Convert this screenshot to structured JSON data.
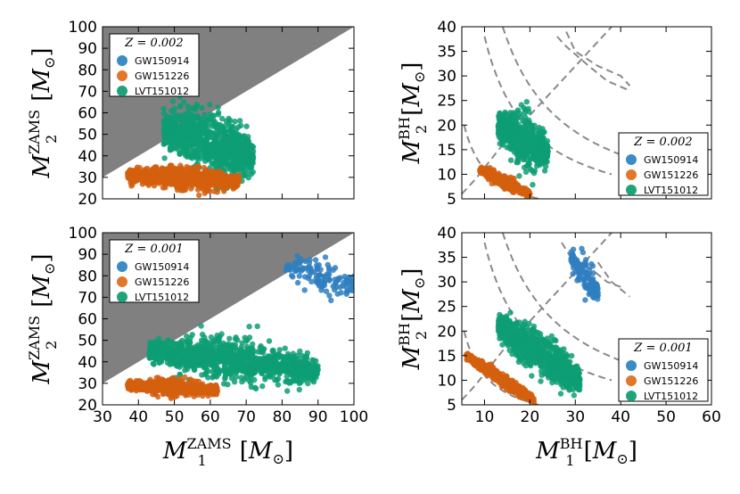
{
  "chart_data": [
    {
      "type": "scatter",
      "panel": "top-left",
      "xlim": [
        30,
        100
      ],
      "ylim": [
        20,
        100
      ],
      "xticks": [],
      "yticks": [
        "20",
        "30",
        "40",
        "50",
        "60",
        "70",
        "80",
        "90",
        "100"
      ],
      "ylabel": {
        "main": "M",
        "sub": "2",
        "sup": "ZAMS",
        "unit": "[M",
        "unit_sub": "⊙",
        "close": "]"
      },
      "forbidden_region": {
        "color": "#808080",
        "vertices": [
          [
            30,
            30
          ],
          [
            100,
            100
          ],
          [
            30,
            100
          ]
        ]
      },
      "legend": {
        "title": "Z = 0.002",
        "position": "top-left",
        "entries": [
          {
            "label": "GW150914",
            "color": "#3a8cc4"
          },
          {
            "label": "GW151226",
            "color": "#e2772a"
          },
          {
            "label": "LVT151012",
            "color": "#1fa37b"
          }
        ]
      },
      "series": [
        {
          "name": "LVT151012",
          "color": "#0e9e74",
          "cloud": {
            "x_range": [
              47,
              72
            ],
            "y_center": [
              52,
              40
            ],
            "y_spread": 6,
            "n": 900
          }
        },
        {
          "name": "GW151226",
          "color": "#d45f0e",
          "cloud": {
            "x_range": [
              37,
              68
            ],
            "y_center": [
              31,
              28
            ],
            "y_spread": 2.2,
            "n": 700
          }
        }
      ]
    },
    {
      "type": "scatter",
      "panel": "top-right",
      "xlim": [
        5,
        60
      ],
      "ylim": [
        5,
        40
      ],
      "xticks": [],
      "yticks": [
        "5",
        "10",
        "15",
        "20",
        "25",
        "30",
        "35",
        "40"
      ],
      "ylabel": {
        "main": "M",
        "sub": "2",
        "sup": "BH",
        "unit": "[M",
        "unit_sub": "⊙",
        "close": "]"
      },
      "legend": {
        "title": "Z = 0.002",
        "position": "bottom-right",
        "entries": [
          {
            "label": "GW150914",
            "color": "#3a8cc4"
          },
          {
            "label": "GW151226",
            "color": "#e2772a"
          },
          {
            "label": "LVT151012",
            "color": "#1fa37b"
          }
        ]
      },
      "series": [
        {
          "name": "LVT151012",
          "color": "#0e9e74",
          "cloud": {
            "x_range": [
              13,
              24
            ],
            "y_center": [
              20,
              14
            ],
            "y_spread": 2.2,
            "n": 600
          }
        },
        {
          "name": "GW151226",
          "color": "#d45f0e",
          "cloud": {
            "x_range": [
              9,
              20
            ],
            "y_center": [
              11,
              6
            ],
            "y_spread": 0.5,
            "n": 400
          }
        }
      ]
    },
    {
      "type": "scatter",
      "panel": "bottom-left",
      "xlim": [
        30,
        100
      ],
      "ylim": [
        20,
        100
      ],
      "xticks": [
        "30",
        "40",
        "50",
        "60",
        "70",
        "80",
        "90",
        "100"
      ],
      "yticks": [
        "20",
        "30",
        "40",
        "50",
        "60",
        "70",
        "80",
        "90",
        "100"
      ],
      "xlabel": {
        "main": "M",
        "sub": "1",
        "sup": "ZAMS",
        "unit": "[M",
        "unit_sub": "⊙",
        "close": "]"
      },
      "ylabel": {
        "main": "M",
        "sub": "2",
        "sup": "ZAMS",
        "unit": "[M",
        "unit_sub": "⊙",
        "close": "]"
      },
      "forbidden_region": {
        "color": "#808080",
        "vertices": [
          [
            30,
            30
          ],
          [
            100,
            100
          ],
          [
            30,
            100
          ]
        ]
      },
      "legend": {
        "title": "Z = 0.001",
        "position": "top-left",
        "entries": [
          {
            "label": "GW150914",
            "color": "#3a8cc4"
          },
          {
            "label": "GW151226",
            "color": "#e2772a"
          },
          {
            "label": "LVT151012",
            "color": "#1fa37b"
          }
        ]
      },
      "series": [
        {
          "name": "GW150914",
          "color": "#2f7fc0",
          "cloud": {
            "x_range": [
              81,
              100
            ],
            "y_center": [
              84,
              76
            ],
            "y_spread": 3,
            "n": 120
          }
        },
        {
          "name": "LVT151012",
          "color": "#0e9e74",
          "cloud": {
            "x_range": [
              43,
              90
            ],
            "y_center": [
              45,
              36
            ],
            "y_spread": 4,
            "n": 1100
          }
        },
        {
          "name": "GW151226",
          "color": "#d45f0e",
          "cloud": {
            "x_range": [
              37,
              62
            ],
            "y_center": [
              29,
              27
            ],
            "y_spread": 1.5,
            "n": 600
          }
        }
      ]
    },
    {
      "type": "scatter",
      "panel": "bottom-right",
      "xlim": [
        5,
        60
      ],
      "ylim": [
        5,
        40
      ],
      "xticks": [
        "10",
        "20",
        "30",
        "40",
        "50",
        "60"
      ],
      "yticks": [
        "5",
        "10",
        "15",
        "20",
        "25",
        "30",
        "35",
        "40"
      ],
      "xlabel": {
        "main": "M",
        "sub": "1",
        "sup": "BH",
        "unit": "[M",
        "unit_sub": "⊙",
        "close": "]"
      },
      "ylabel": {
        "main": "M",
        "sub": "2",
        "sup": "BH",
        "unit": "[M",
        "unit_sub": "⊙",
        "close": "]"
      },
      "legend": {
        "title": "Z = 0.001",
        "position": "bottom-right",
        "entries": [
          {
            "label": "GW150914",
            "color": "#3a8cc4"
          },
          {
            "label": "GW151226",
            "color": "#e2772a"
          },
          {
            "label": "LVT151012",
            "color": "#1fa37b"
          }
        ]
      },
      "series": [
        {
          "name": "GW150914",
          "color": "#2f7fc0",
          "cloud": {
            "x_range": [
              29,
              35
            ],
            "y_center": [
              35,
              28
            ],
            "y_spread": 1.5,
            "n": 120
          }
        },
        {
          "name": "LVT151012",
          "color": "#0e9e74",
          "cloud": {
            "x_range": [
              13,
              31
            ],
            "y_center": [
              21,
              10
            ],
            "y_spread": 1.8,
            "n": 800
          }
        },
        {
          "name": "GW151226",
          "color": "#d45f0e",
          "cloud": {
            "x_range": [
              6,
              21
            ],
            "y_center": [
              15,
              5.8
            ],
            "y_spread": 0.5,
            "n": 500
          }
        }
      ]
    }
  ]
}
